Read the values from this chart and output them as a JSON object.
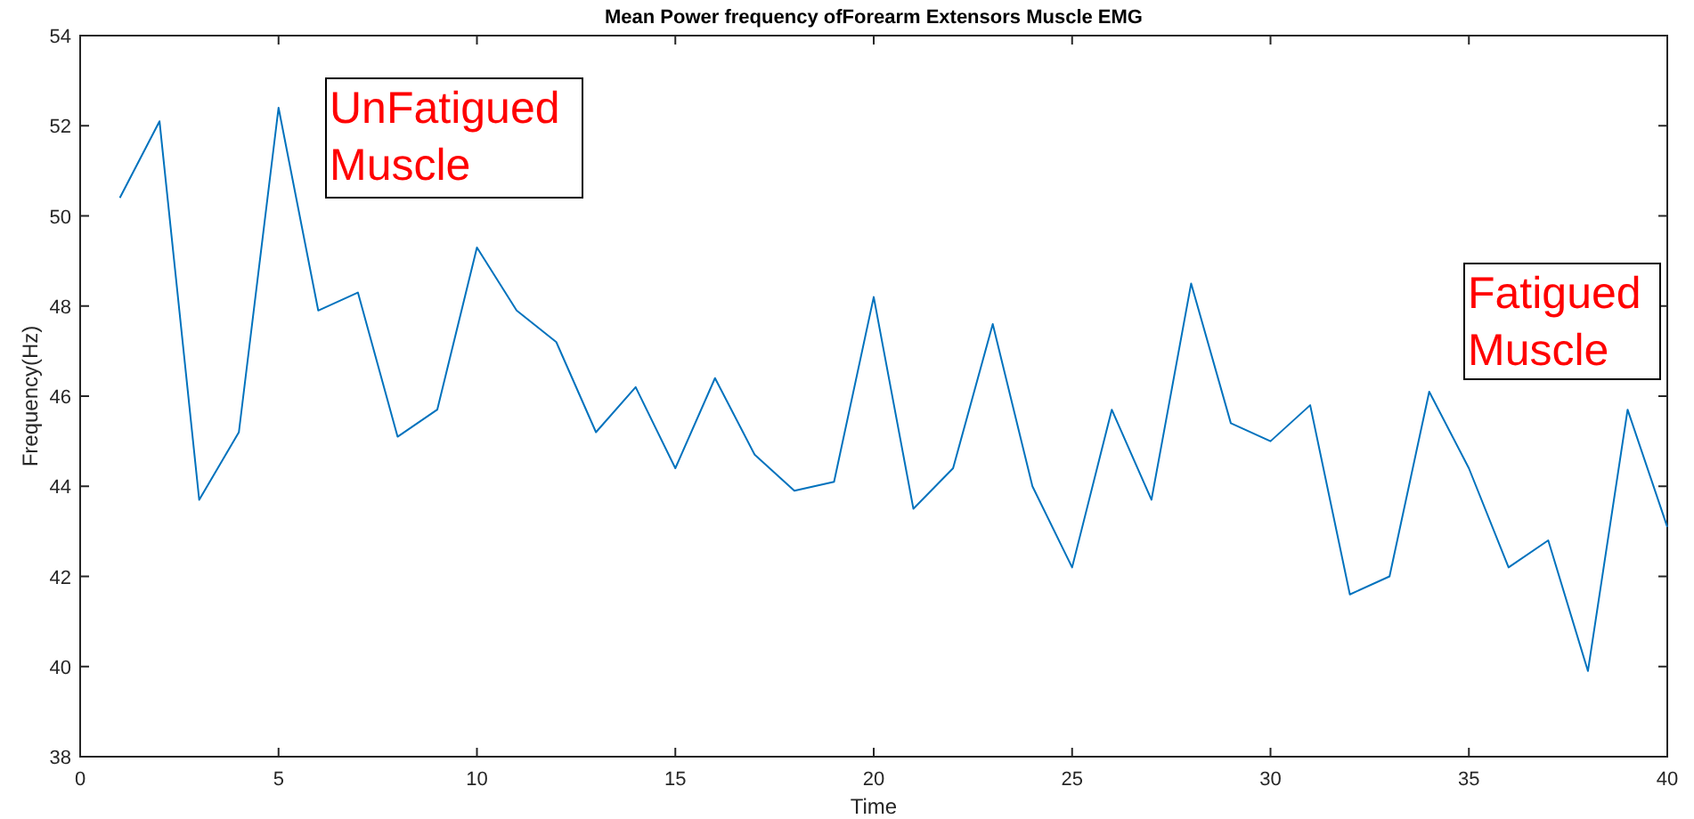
{
  "chart_data": {
    "type": "line",
    "title": "Mean Power frequency ofForearm Extensors Muscle EMG",
    "xlabel": "Time",
    "ylabel": "Frequency(Hz)",
    "x": [
      1,
      2,
      3,
      4,
      5,
      6,
      7,
      8,
      9,
      10,
      11,
      12,
      13,
      14,
      15,
      16,
      17,
      18,
      19,
      20,
      21,
      22,
      23,
      24,
      25,
      26,
      27,
      28,
      29,
      30,
      31,
      32,
      33,
      34,
      35,
      36,
      37,
      38,
      39,
      40
    ],
    "series": [
      {
        "color": "#0072bd",
        "values": [
          50.4,
          52.1,
          43.7,
          45.2,
          52.4,
          47.9,
          48.3,
          45.1,
          45.7,
          49.3,
          47.9,
          47.2,
          45.2,
          46.2,
          44.4,
          46.4,
          44.7,
          43.9,
          44.1,
          48.2,
          43.5,
          44.4,
          47.6,
          44.0,
          42.2,
          45.7,
          43.7,
          48.5,
          45.4,
          45.0,
          45.8,
          41.6,
          42.0,
          46.1,
          44.4,
          42.2,
          42.8,
          39.9,
          45.7,
          43.1
        ]
      }
    ],
    "xlim": [
      0,
      40
    ],
    "xticks": [
      0,
      5,
      10,
      15,
      20,
      25,
      30,
      35,
      40
    ],
    "ylim": [
      38,
      54
    ],
    "yticks": [
      38,
      40,
      42,
      44,
      46,
      48,
      50,
      52,
      54
    ],
    "annotations": [
      "UnFatigued\nMuscle",
      "Fatigued\nMuscle"
    ],
    "grid": false,
    "marker": "none",
    "line_style": "solid"
  }
}
